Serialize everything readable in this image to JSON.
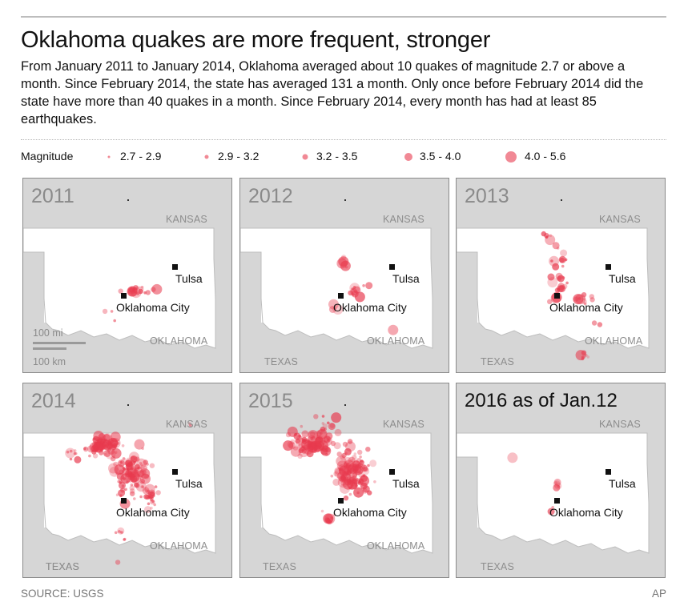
{
  "headline": "Oklahoma quakes are more frequent, stronger",
  "subtext": "From January 2011 to January 2014, Oklahoma averaged about 10 quakes of magnitude 2.7 or above a month. Since February 2014, the state has averaged 131 a month. Only once before February 2014 did the state have more than 40 quakes in a month. Since February 2014, every month has had at least 85 earthquakes.",
  "legend": {
    "title": "Magnitude",
    "items": [
      {
        "label": "2.7 - 2.9"
      },
      {
        "label": "2.9 - 3.2"
      },
      {
        "label": "3.2 - 3.5"
      },
      {
        "label": "3.5 - 4.0"
      },
      {
        "label": "4.0 - 5.6"
      }
    ]
  },
  "map_labels": {
    "kansas": "KANSAS",
    "oklahoma": "OKLAHOMA",
    "texas": "TEXAS",
    "tulsa": "Tulsa",
    "okc": "Oklahoma City"
  },
  "scale": {
    "miles": "100 mi",
    "km": "100 km"
  },
  "panels": [
    {
      "year": "2011"
    },
    {
      "year": "2012"
    },
    {
      "year": "2013"
    },
    {
      "year": "2014"
    },
    {
      "year": "2015"
    },
    {
      "year": "2016 as of Jan.12"
    }
  ],
  "source": "SOURCE: USGS",
  "credit": "AP",
  "colors": {
    "quake": "#e83a4e",
    "neighbor_fill": "#d6d6d6",
    "state_fill": "#ffffff",
    "label_gray": "#8d8d8d"
  }
}
